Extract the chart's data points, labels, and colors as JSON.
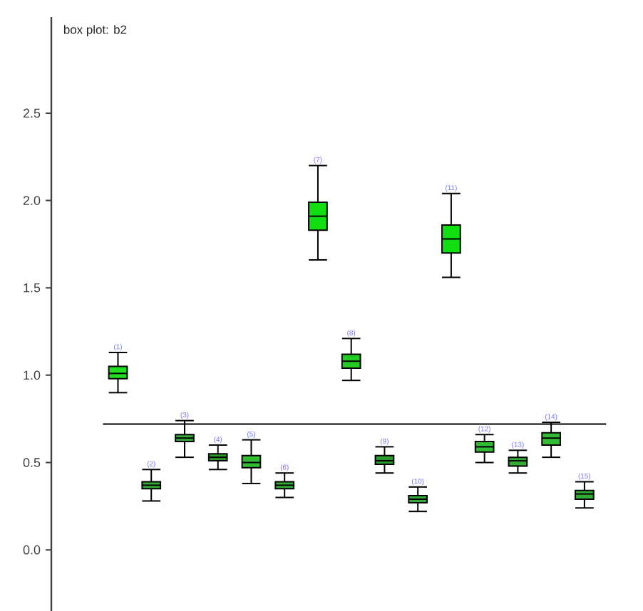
{
  "chart_data": {
    "type": "box",
    "title": "box plot: b2",
    "categories": [
      "(1)",
      "(2)",
      "(3)",
      "(4)",
      "(5)",
      "(6)",
      "(7)",
      "(8)",
      "(9)",
      "(10)",
      "(11)",
      "(12)",
      "(13)",
      "(14)",
      "(15)"
    ],
    "boxes": [
      {
        "low": 0.9,
        "q1": 0.98,
        "median": 1.01,
        "q3": 1.05,
        "high": 1.13
      },
      {
        "low": 0.28,
        "q1": 0.35,
        "median": 0.37,
        "q3": 0.39,
        "high": 0.46
      },
      {
        "low": 0.53,
        "q1": 0.62,
        "median": 0.64,
        "q3": 0.66,
        "high": 0.74
      },
      {
        "low": 0.46,
        "q1": 0.51,
        "median": 0.53,
        "q3": 0.55,
        "high": 0.6
      },
      {
        "low": 0.38,
        "q1": 0.47,
        "median": 0.5,
        "q3": 0.54,
        "high": 0.63
      },
      {
        "low": 0.3,
        "q1": 0.35,
        "median": 0.37,
        "q3": 0.39,
        "high": 0.44
      },
      {
        "low": 1.66,
        "q1": 1.83,
        "median": 1.91,
        "q3": 1.99,
        "high": 2.2
      },
      {
        "low": 0.97,
        "q1": 1.04,
        "median": 1.08,
        "q3": 1.12,
        "high": 1.21
      },
      {
        "low": 0.44,
        "q1": 0.49,
        "median": 0.51,
        "q3": 0.54,
        "high": 0.59
      },
      {
        "low": 0.22,
        "q1": 0.27,
        "median": 0.29,
        "q3": 0.31,
        "high": 0.36
      },
      {
        "low": 1.56,
        "q1": 1.7,
        "median": 1.78,
        "q3": 1.86,
        "high": 2.04
      },
      {
        "low": 0.5,
        "q1": 0.56,
        "median": 0.59,
        "q3": 0.62,
        "high": 0.66
      },
      {
        "low": 0.44,
        "q1": 0.48,
        "median": 0.51,
        "q3": 0.53,
        "high": 0.57
      },
      {
        "low": 0.53,
        "q1": 0.6,
        "median": 0.64,
        "q3": 0.67,
        "high": 0.73
      },
      {
        "low": 0.24,
        "q1": 0.29,
        "median": 0.32,
        "q3": 0.34,
        "high": 0.39
      }
    ],
    "colors": [
      "#22dd22",
      "#33aa33",
      "#33aa33",
      "#2a9a2a",
      "#33bb33",
      "#33aa33",
      "#11dd11",
      "#22cc22",
      "#2a9a2a",
      "#33aa33",
      "#11dd11",
      "#33bb33",
      "#33aa33",
      "#33bb33",
      "#33aa33"
    ],
    "ylim": [
      -0.35,
      3.05
    ],
    "yticks": [
      {
        "value": 0,
        "label": "0.0"
      },
      {
        "value": 0.5,
        "label": "0.5"
      },
      {
        "value": 1.0,
        "label": "1.0"
      },
      {
        "value": 1.5,
        "label": "1.5"
      },
      {
        "value": 2.0,
        "label": "2.0"
      },
      {
        "value": 2.5,
        "label": "2.5"
      }
    ],
    "ref_lines": [
      {
        "axis": "y",
        "value": 0.72
      }
    ],
    "tick_labels": "y"
  }
}
